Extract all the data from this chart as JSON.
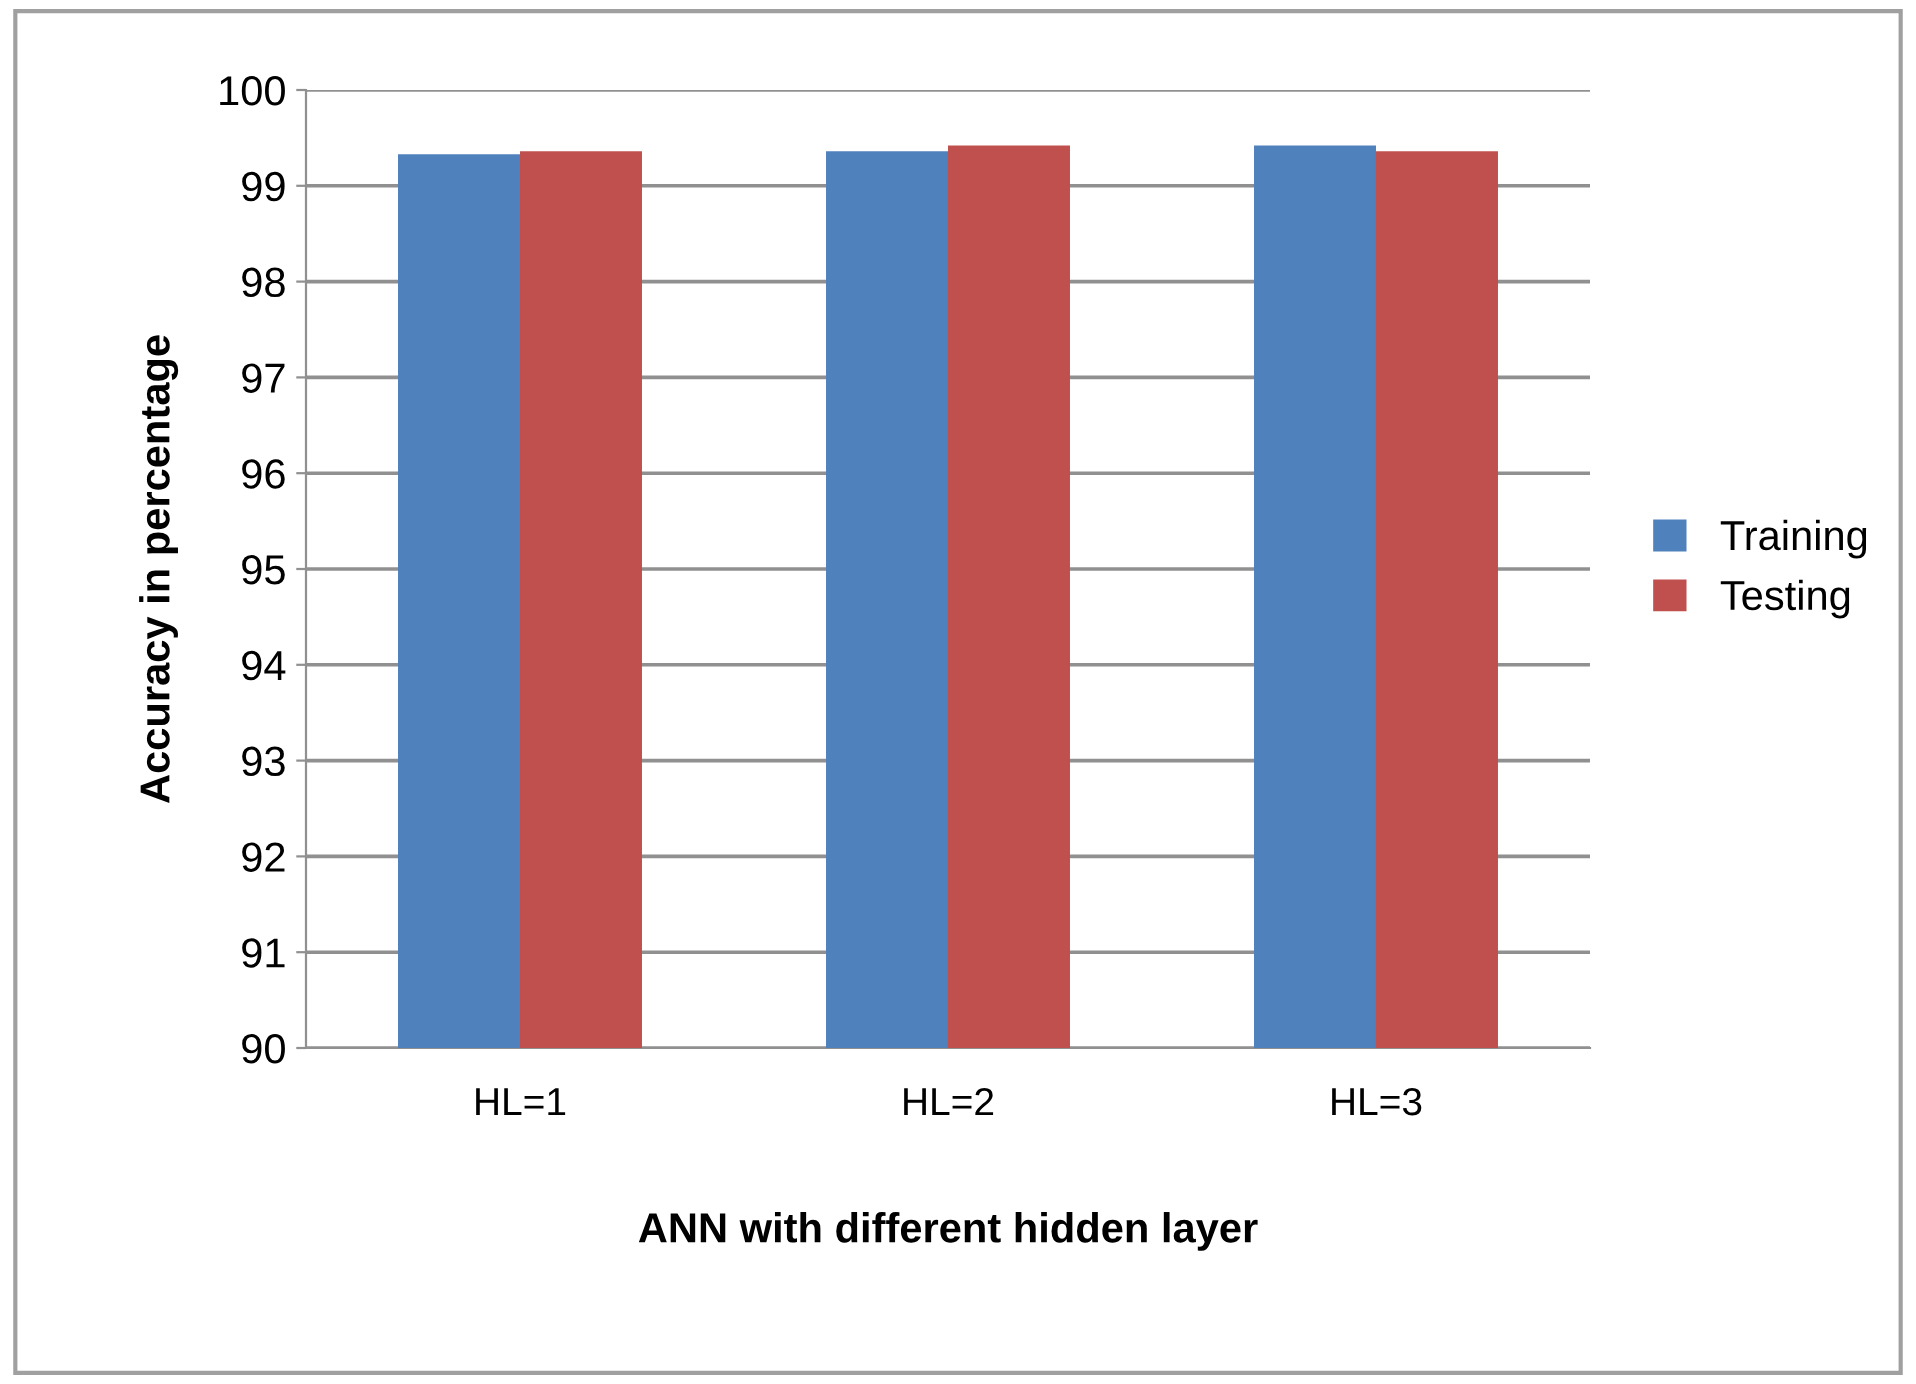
{
  "chart_data": {
    "type": "bar",
    "xlabel": "ANN with different hidden layer",
    "ylabel": "Accuracy in percentage",
    "categories": [
      "HL=1",
      "HL=2",
      "HL=3"
    ],
    "series": [
      {
        "name": "Training",
        "color": "#4f81bd",
        "values": [
          99.33,
          99.36,
          99.42
        ]
      },
      {
        "name": "Testing",
        "color": "#c0504d",
        "values": [
          99.36,
          99.42,
          99.36
        ]
      }
    ],
    "ylim": [
      90,
      100
    ],
    "yticks": [
      90,
      91,
      92,
      93,
      94,
      95,
      96,
      97,
      98,
      99,
      100
    ],
    "grid": "y",
    "legend": "right"
  }
}
